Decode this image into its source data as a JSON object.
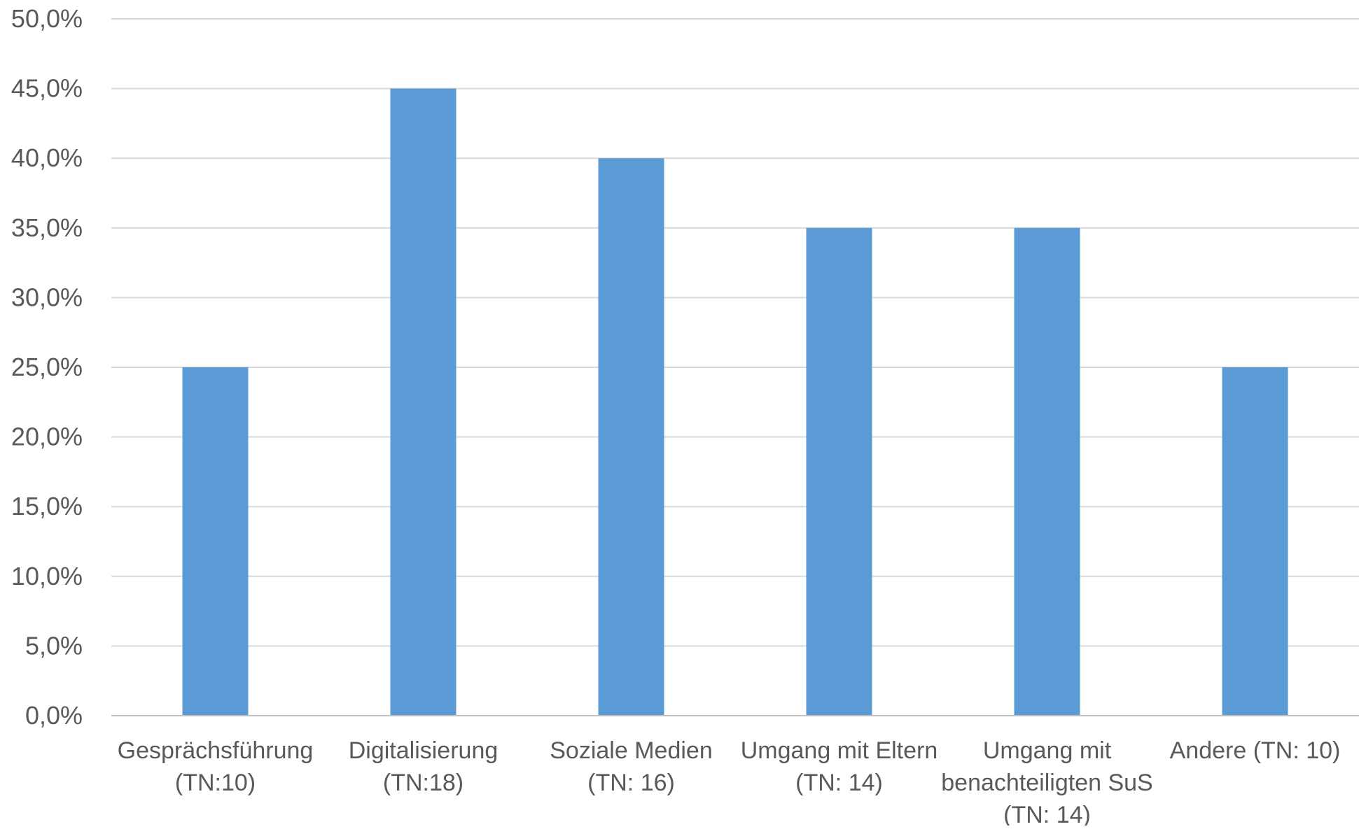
{
  "chart_data": {
    "type": "bar",
    "categories": [
      [
        "Gesprächsführung",
        "(TN:10)"
      ],
      [
        "Digitalisierung",
        "(TN:18)"
      ],
      [
        "Soziale Medien",
        "(TN: 16)"
      ],
      [
        "Umgang mit Eltern",
        "(TN: 14)"
      ],
      [
        "Umgang mit",
        "benachteiligten SuS",
        "(TN: 14)"
      ],
      [
        "Andere (TN: 10)"
      ]
    ],
    "values": [
      25.0,
      45.0,
      40.0,
      35.0,
      35.0,
      25.0
    ],
    "ylim": [
      0,
      50
    ],
    "ytick_step": 5,
    "ytick_format": "percent-comma-1",
    "ytick_labels": [
      "0,0%",
      "5,0%",
      "10,0%",
      "15,0%",
      "20,0%",
      "25,0%",
      "30,0%",
      "35,0%",
      "40,0%",
      "45,0%",
      "50,0%"
    ],
    "title": "",
    "xlabel": "",
    "ylabel": "",
    "grid": true,
    "legend": "none",
    "colors": {
      "bar": "#5B9BD5",
      "grid": "#D9D9D9",
      "axis": "#BFBFBF",
      "text": "#595959"
    }
  }
}
